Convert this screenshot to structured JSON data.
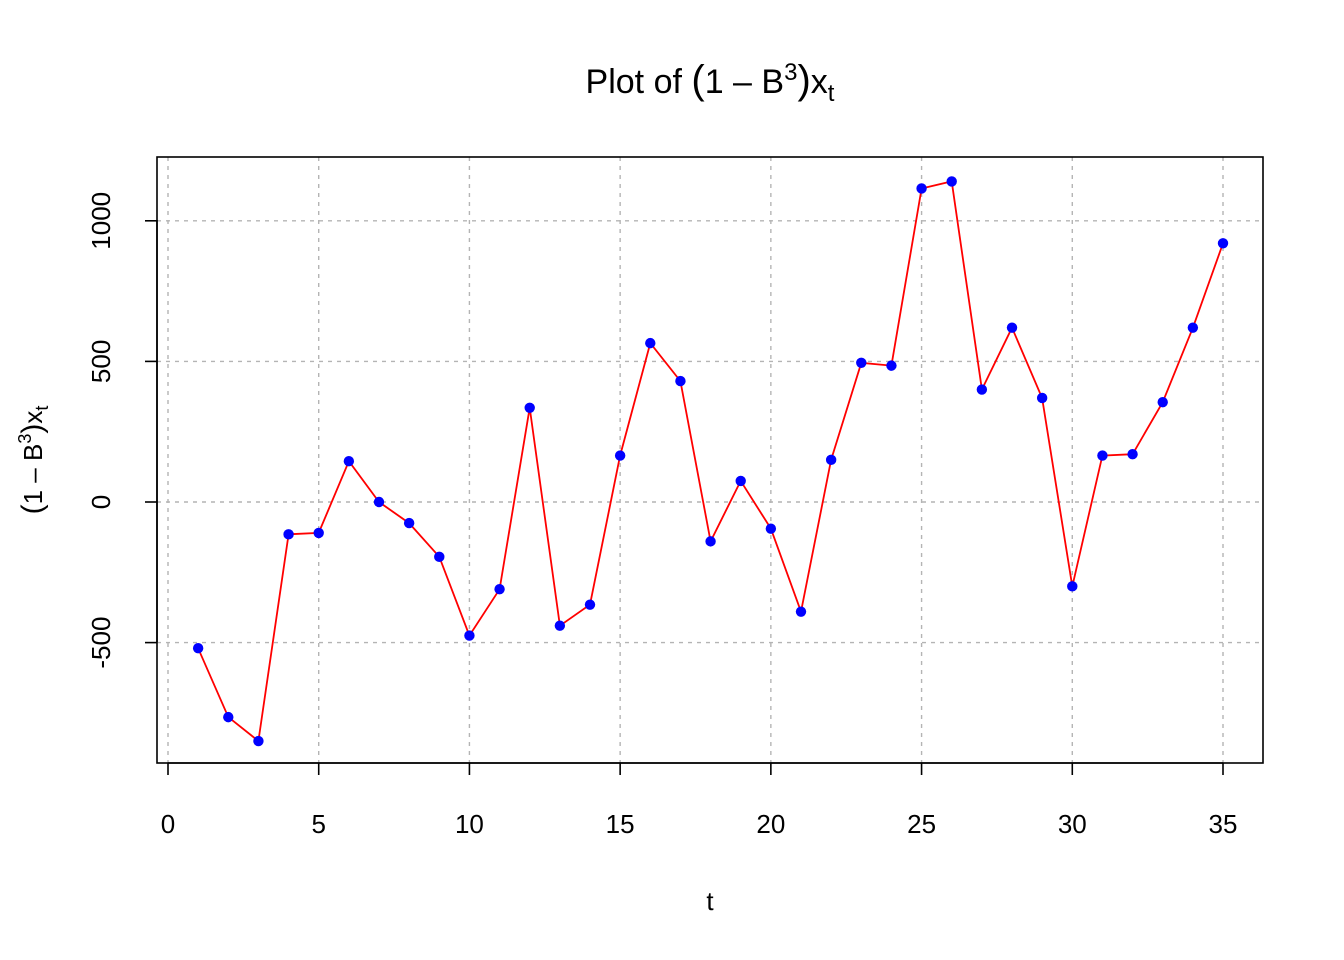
{
  "chart_data": {
    "type": "line",
    "title_parts": [
      "Plot of ",
      "(",
      "1 – B",
      "3",
      ")",
      "x",
      "t"
    ],
    "xlabel": "t",
    "ylabel_parts": [
      "(",
      "1 – B",
      "3",
      ")",
      "x",
      "t"
    ],
    "xlim": [
      0,
      35
    ],
    "ylim": [
      -930,
      1230
    ],
    "xticks": [
      0,
      5,
      10,
      15,
      20,
      25,
      30,
      35
    ],
    "yticks": [
      -500,
      0,
      500,
      1000
    ],
    "grid": true,
    "colors": {
      "line": "#ff0000",
      "points": "#0000ff"
    },
    "series": [
      {
        "x": [
          1,
          2,
          3,
          4,
          5,
          6,
          7,
          8,
          9,
          10,
          11,
          12,
          13,
          14,
          15,
          16,
          17,
          18,
          19,
          20,
          21,
          22,
          23,
          24,
          25,
          26,
          27,
          28,
          29,
          30,
          31,
          32,
          33,
          34,
          35
        ],
        "values": [
          -520,
          -765,
          -850,
          -115,
          -110,
          145,
          0,
          -75,
          -195,
          -475,
          -310,
          335,
          -440,
          -365,
          165,
          565,
          430,
          -140,
          75,
          -95,
          -390,
          150,
          495,
          485,
          1115,
          1140,
          400,
          620,
          370,
          -300,
          165,
          170,
          355,
          620,
          920
        ]
      }
    ]
  }
}
